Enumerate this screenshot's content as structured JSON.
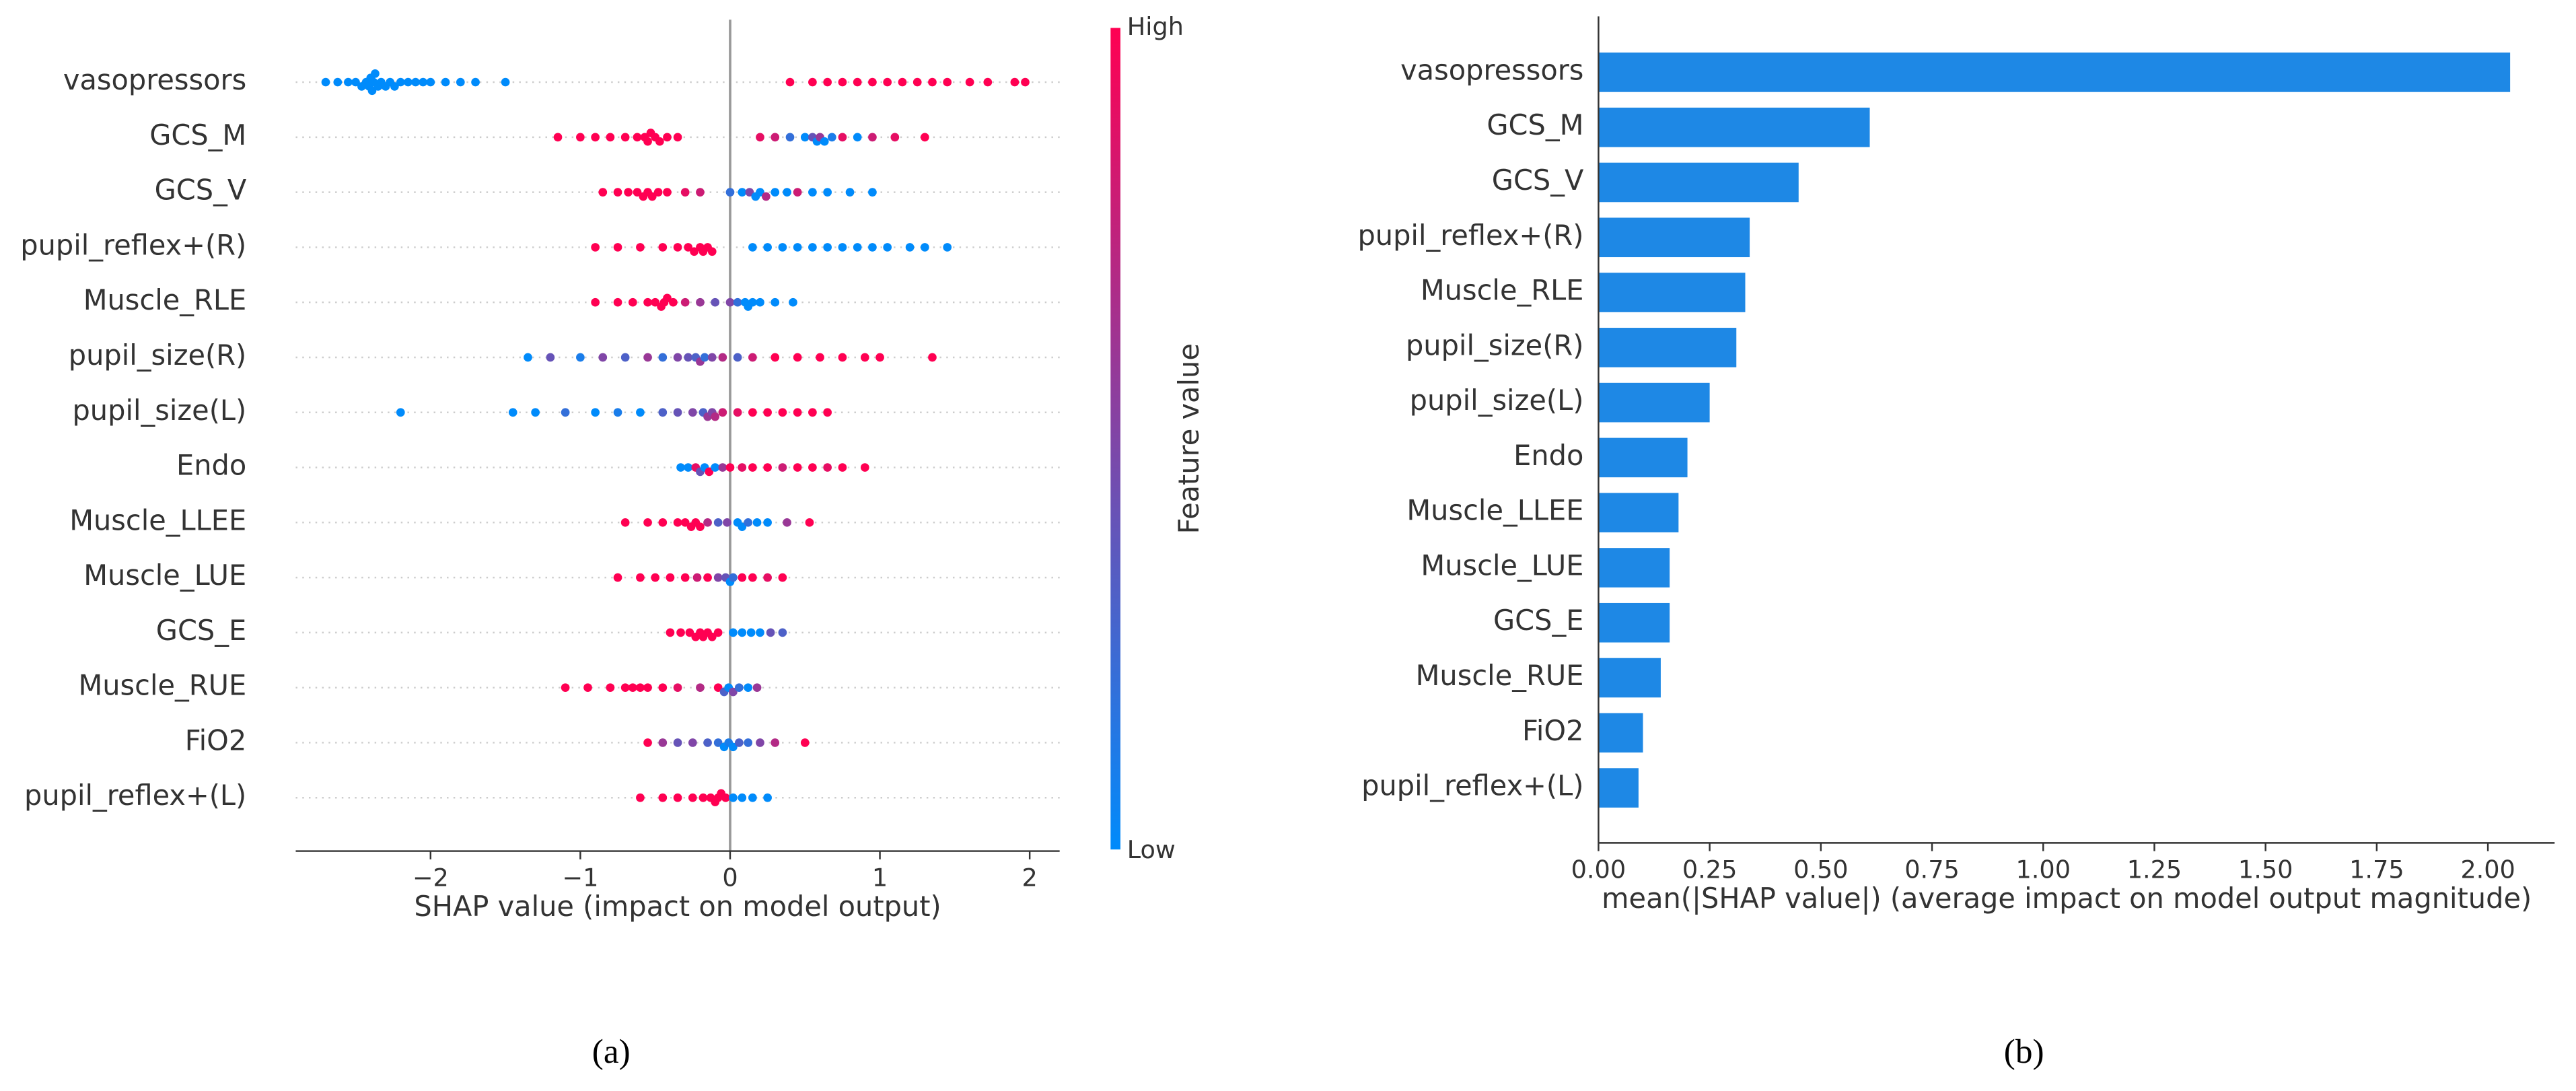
{
  "chart_data": [
    {
      "type": "beeswarm",
      "caption": "(a)",
      "xlabel": "SHAP value (impact on model output)",
      "categories": [
        "vasopressors",
        "GCS_M",
        "GCS_V",
        "pupil_reflex+(R)",
        "Muscle_RLE",
        "pupil_size(R)",
        "pupil_size(L)",
        "Endo",
        "Muscle_LLEE",
        "Muscle_LUE",
        "GCS_E",
        "Muscle_RUE",
        "FiO2",
        "pupil_reflex+(L)"
      ],
      "shap_values": [
        [
          -2.7,
          -2.62,
          -2.55,
          -2.5,
          -2.46,
          -2.43,
          -2.41,
          -2.4,
          -2.39,
          -2.38,
          -2.37,
          -2.35,
          -2.33,
          -2.3,
          -2.27,
          -2.24,
          -2.2,
          -2.15,
          -2.1,
          -2.05,
          -2.0,
          -1.9,
          -1.8,
          -1.7,
          -1.5,
          0.4,
          0.55,
          0.65,
          0.75,
          0.85,
          0.95,
          1.05,
          1.15,
          1.25,
          1.35,
          1.45,
          1.6,
          1.72,
          1.9,
          1.97
        ],
        [
          -1.15,
          -1.0,
          -0.9,
          -0.8,
          -0.7,
          -0.62,
          -0.57,
          -0.55,
          -0.53,
          -0.5,
          -0.47,
          -0.42,
          -0.35,
          0.2,
          0.3,
          0.4,
          0.5,
          0.55,
          0.58,
          0.6,
          0.63,
          0.68,
          0.75,
          0.85,
          0.95,
          1.1,
          1.3
        ],
        [
          -0.85,
          -0.75,
          -0.68,
          -0.62,
          -0.58,
          -0.55,
          -0.52,
          -0.48,
          -0.42,
          -0.3,
          -0.2,
          0.0,
          0.08,
          0.13,
          0.17,
          0.2,
          0.24,
          0.3,
          0.38,
          0.45,
          0.55,
          0.65,
          0.8,
          0.95
        ],
        [
          -0.9,
          -0.75,
          -0.6,
          -0.45,
          -0.35,
          -0.28,
          -0.24,
          -0.2,
          -0.18,
          -0.15,
          -0.12,
          0.15,
          0.25,
          0.35,
          0.45,
          0.55,
          0.65,
          0.75,
          0.85,
          0.95,
          1.05,
          1.2,
          1.3,
          1.45
        ],
        [
          -0.9,
          -0.75,
          -0.65,
          -0.55,
          -0.5,
          -0.46,
          -0.44,
          -0.42,
          -0.38,
          -0.3,
          -0.2,
          -0.1,
          0.0,
          0.05,
          0.1,
          0.12,
          0.15,
          0.2,
          0.3,
          0.42
        ],
        [
          -1.35,
          -1.2,
          -1.0,
          -0.85,
          -0.7,
          -0.55,
          -0.45,
          -0.35,
          -0.28,
          -0.23,
          -0.2,
          -0.17,
          -0.12,
          -0.05,
          0.05,
          0.15,
          0.3,
          0.45,
          0.6,
          0.75,
          0.9,
          1.0,
          1.35
        ],
        [
          -2.2,
          -1.45,
          -1.3,
          -1.1,
          -0.9,
          -0.75,
          -0.6,
          -0.45,
          -0.35,
          -0.25,
          -0.18,
          -0.15,
          -0.12,
          -0.1,
          -0.05,
          0.05,
          0.15,
          0.25,
          0.35,
          0.45,
          0.55,
          0.65
        ],
        [
          -0.33,
          -0.28,
          -0.23,
          -0.2,
          -0.17,
          -0.14,
          -0.1,
          -0.05,
          0.0,
          0.08,
          0.15,
          0.25,
          0.35,
          0.45,
          0.55,
          0.65,
          0.75,
          0.9
        ],
        [
          -0.7,
          -0.55,
          -0.45,
          -0.35,
          -0.3,
          -0.26,
          -0.23,
          -0.2,
          -0.15,
          -0.08,
          -0.02,
          0.05,
          0.08,
          0.12,
          0.18,
          0.25,
          0.38,
          0.53
        ],
        [
          -0.75,
          -0.6,
          -0.5,
          -0.4,
          -0.3,
          -0.22,
          -0.15,
          -0.08,
          -0.03,
          0.0,
          0.02,
          0.08,
          0.15,
          0.25,
          0.35
        ],
        [
          -0.4,
          -0.33,
          -0.27,
          -0.23,
          -0.2,
          -0.18,
          -0.15,
          -0.12,
          -0.08,
          0.02,
          0.08,
          0.14,
          0.2,
          0.27,
          0.35
        ],
        [
          -1.1,
          -0.95,
          -0.8,
          -0.7,
          -0.65,
          -0.6,
          -0.55,
          -0.45,
          -0.35,
          -0.2,
          -0.08,
          -0.04,
          -0.01,
          0.02,
          0.06,
          0.12,
          0.18
        ],
        [
          -0.55,
          -0.45,
          -0.35,
          -0.25,
          -0.15,
          -0.08,
          -0.04,
          -0.01,
          0.02,
          0.06,
          0.12,
          0.2,
          0.3,
          0.5
        ],
        [
          -0.6,
          -0.45,
          -0.35,
          -0.25,
          -0.18,
          -0.13,
          -0.1,
          -0.08,
          -0.06,
          -0.03,
          0.02,
          0.08,
          0.15,
          0.25
        ]
      ],
      "feature_values": [
        [
          0,
          0,
          0,
          0,
          0,
          0,
          0,
          0,
          0,
          0,
          0,
          0,
          0,
          0,
          0,
          0,
          0,
          0,
          0,
          0,
          0,
          0,
          0,
          0,
          0,
          1,
          1,
          1,
          1,
          1,
          1,
          1,
          1,
          1,
          1,
          1,
          1,
          1,
          1,
          1
        ],
        [
          1,
          1,
          1,
          1,
          1,
          1,
          1,
          1,
          1,
          1,
          1,
          1,
          1,
          0.9,
          0.8,
          0.2,
          0,
          0.4,
          0,
          0.6,
          0,
          0.1,
          0.9,
          0,
          0.8,
          0.9,
          1
        ],
        [
          1,
          1,
          1,
          1,
          1,
          1,
          1,
          1,
          1,
          0.9,
          0.8,
          0.2,
          0,
          0.5,
          0,
          0,
          0.7,
          0,
          0,
          0.8,
          0,
          0,
          0,
          0
        ],
        [
          1,
          1,
          1,
          1,
          1,
          1,
          1,
          1,
          1,
          1,
          1,
          0,
          0,
          0,
          0,
          0,
          0,
          0,
          0,
          0,
          0,
          0,
          0,
          0
        ],
        [
          1,
          1,
          1,
          1,
          1,
          1,
          1,
          1,
          1,
          0.8,
          0.6,
          0.4,
          0.5,
          0.2,
          0,
          0,
          0,
          0,
          0,
          0
        ],
        [
          0,
          0.4,
          0.1,
          0.5,
          0.3,
          0.6,
          0.2,
          0.5,
          0.4,
          0.3,
          0.6,
          0.2,
          0.5,
          0.7,
          0.3,
          0.8,
          1,
          1,
          1,
          1,
          1,
          1,
          1
        ],
        [
          0,
          0,
          0,
          0.2,
          0,
          0.1,
          0,
          0.3,
          0.4,
          0.5,
          0.3,
          0.6,
          0.5,
          0.7,
          0.8,
          0.9,
          1,
          1,
          1,
          1,
          1,
          1
        ],
        [
          0,
          0,
          0.9,
          0.4,
          0,
          1,
          0,
          0.6,
          1,
          0.9,
          1,
          1,
          0.8,
          1,
          1,
          0.9,
          1,
          1
        ],
        [
          1,
          1,
          1,
          1,
          1,
          1,
          1,
          1,
          0.7,
          0.3,
          0.5,
          0,
          0,
          0.2,
          0,
          0,
          0.6,
          1
        ],
        [
          1,
          1,
          1,
          1,
          1,
          0.8,
          1,
          0.5,
          0.4,
          0,
          0.2,
          1,
          1,
          0.9,
          1
        ],
        [
          1,
          1,
          1,
          1,
          1,
          1,
          1,
          1,
          1,
          0,
          0,
          0,
          0,
          0.4,
          0.3
        ],
        [
          1,
          1,
          1,
          1,
          1,
          1,
          1,
          1,
          0.9,
          0.7,
          1,
          0.3,
          0,
          0.5,
          0.2,
          0,
          0.6
        ],
        [
          1,
          0.6,
          0.4,
          0.5,
          0.3,
          0.2,
          0,
          0.1,
          0,
          0.3,
          0.2,
          0.5,
          0.7,
          1
        ],
        [
          1,
          1,
          1,
          1,
          1,
          1,
          1,
          1,
          1,
          1,
          0,
          0,
          0,
          0
        ]
      ],
      "colormap": [
        "#008bfb",
        "#ff0052"
      ],
      "colorbar": {
        "label": "Feature value",
        "high": "High",
        "low": "Low"
      },
      "xlim": [
        -2.9,
        2.2
      ],
      "xticks": [
        {
          "value": -2,
          "label": "−2"
        },
        {
          "value": -1,
          "label": "−1"
        },
        0,
        1,
        2
      ]
    },
    {
      "type": "barh",
      "caption": "(b)",
      "xlabel": "mean(|SHAP value|) (average impact on model output magnitude)",
      "categories": [
        "vasopressors",
        "GCS_M",
        "GCS_V",
        "pupil_reflex+(R)",
        "Muscle_RLE",
        "pupil_size(R)",
        "pupil_size(L)",
        "Endo",
        "Muscle_LLEE",
        "Muscle_LUE",
        "GCS_E",
        "Muscle_RUE",
        "FiO2",
        "pupil_reflex+(L)"
      ],
      "values": [
        2.05,
        0.61,
        0.45,
        0.34,
        0.33,
        0.31,
        0.25,
        0.2,
        0.18,
        0.16,
        0.16,
        0.14,
        0.1,
        0.09
      ],
      "color": "#1e88e5",
      "xlim": [
        0,
        2.15
      ],
      "xticks": [
        {
          "value": 0,
          "label": "0.00"
        },
        {
          "value": 0.25,
          "label": "0.25"
        },
        {
          "value": 0.5,
          "label": "0.50"
        },
        {
          "value": 0.75,
          "label": "0.75"
        },
        {
          "value": 1,
          "label": "1.00"
        },
        {
          "value": 1.25,
          "label": "1.25"
        },
        {
          "value": 1.5,
          "label": "1.50"
        },
        {
          "value": 1.75,
          "label": "1.75"
        },
        {
          "value": 2,
          "label": "2.00"
        }
      ]
    }
  ]
}
